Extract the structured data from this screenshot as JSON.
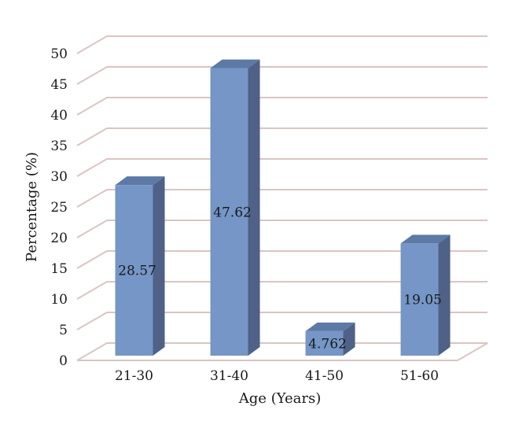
{
  "chart_data": {
    "type": "bar",
    "categories": [
      "21-30",
      "31-40",
      "41-50",
      "51-60"
    ],
    "values": [
      28.57,
      47.62,
      4.762,
      19.05
    ],
    "data_labels": [
      "28.57",
      "47.62",
      "4.762",
      "19.05"
    ],
    "yticks": [
      "0",
      "5",
      "10",
      "15",
      "20",
      "25",
      "30",
      "35",
      "40",
      "45",
      "50"
    ],
    "title": "",
    "xlabel": "Age (Years)",
    "ylabel": "Percentage (%)",
    "ylim": [
      0,
      50
    ],
    "grid": true,
    "style": "3d-column",
    "colors": {
      "bar_front": "#7596c6",
      "bar_side": "#4f6187",
      "bar_top": "#5d7aa6",
      "grid": "#d9c5c3"
    }
  }
}
